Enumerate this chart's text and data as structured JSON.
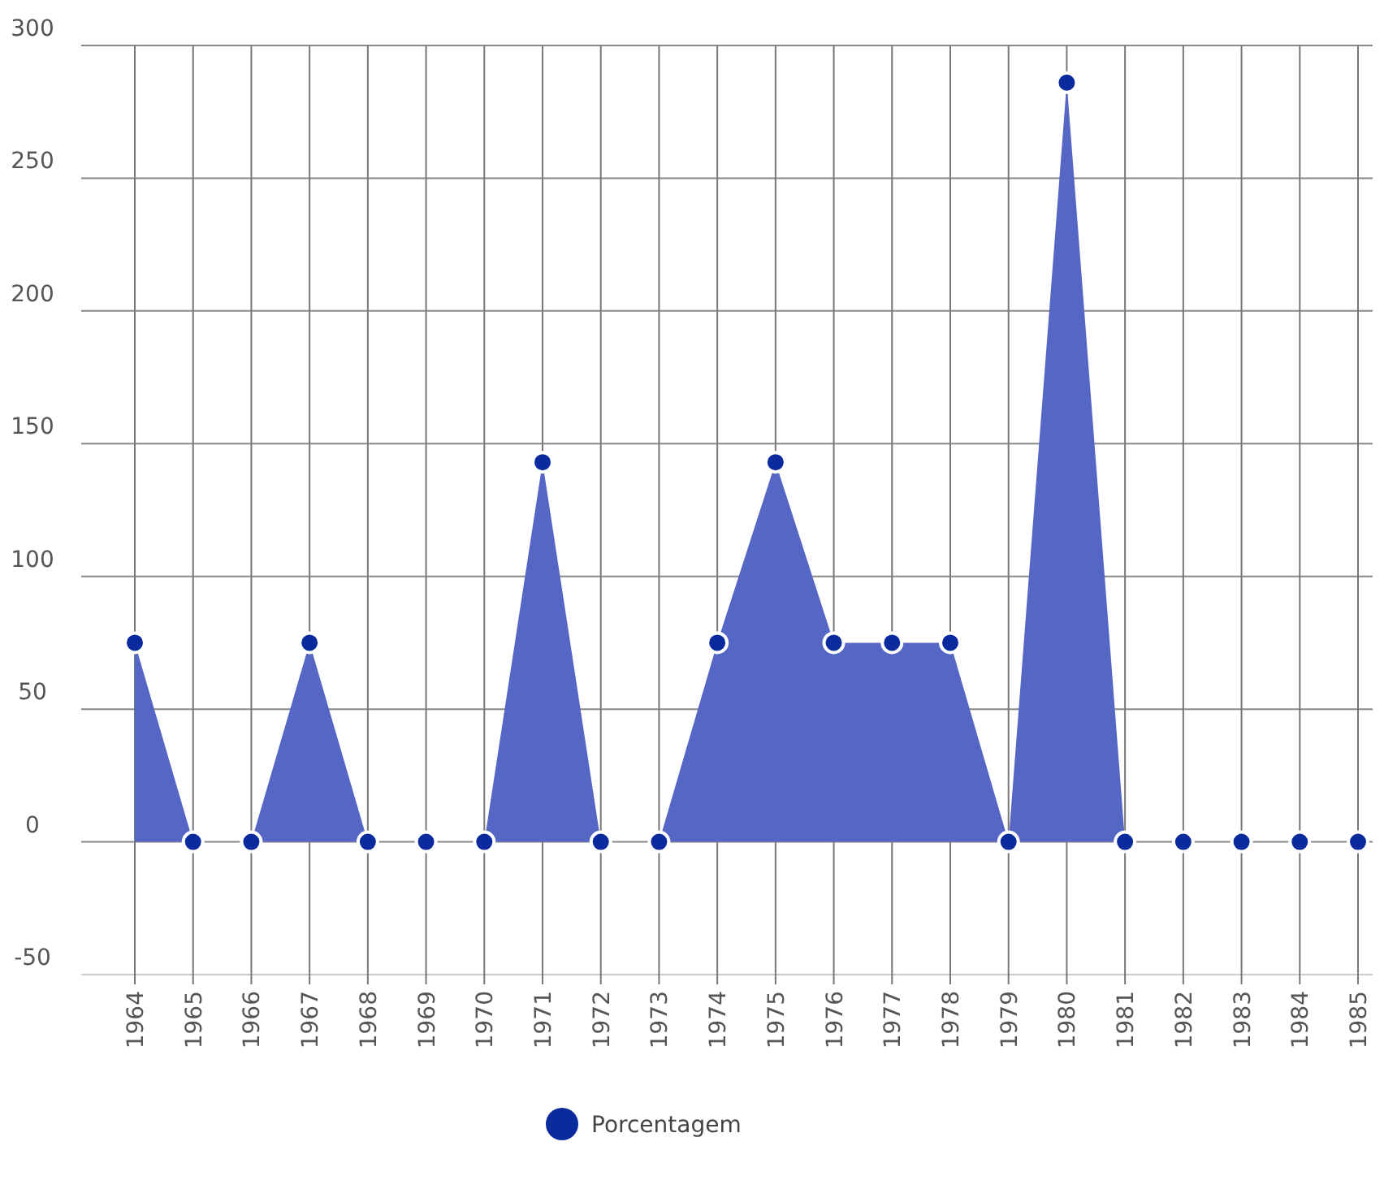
{
  "chart_data": {
    "type": "area",
    "categories": [
      "1964",
      "1965",
      "1966",
      "1967",
      "1968",
      "1969",
      "1970",
      "1971",
      "1972",
      "1973",
      "1974",
      "1975",
      "1976",
      "1977",
      "1978",
      "1979",
      "1980",
      "1981",
      "1982",
      "1983",
      "1984",
      "1985"
    ],
    "series": [
      {
        "name": "Porcentagem",
        "color": "#5566c4",
        "values": [
          75,
          0,
          0,
          75,
          0,
          0,
          0,
          143,
          0,
          0,
          75,
          143,
          75,
          75,
          75,
          0,
          286,
          0,
          0,
          0,
          0,
          0
        ]
      }
    ],
    "ylim": [
      -50,
      300
    ],
    "yticks": [
      -50,
      0,
      50,
      100,
      150,
      200,
      250,
      300
    ],
    "grid": true,
    "marker": "circle",
    "legend": "bottom"
  }
}
